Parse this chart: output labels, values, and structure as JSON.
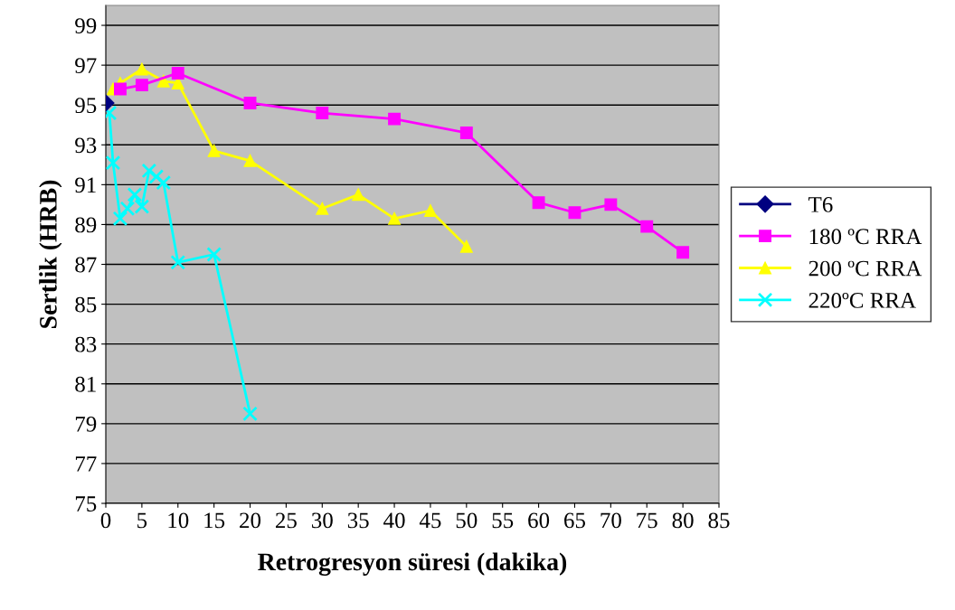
{
  "chart_data": {
    "type": "line",
    "xlabel": "Retrogresyon süresi (dakika)",
    "ylabel": "Sertlik (HRB)",
    "xlim": [
      0,
      85
    ],
    "xticks": [
      0,
      5,
      10,
      15,
      20,
      25,
      30,
      35,
      40,
      45,
      50,
      55,
      60,
      65,
      70,
      75,
      80,
      85
    ],
    "ylim": [
      75,
      100
    ],
    "yticks": [
      75,
      77,
      79,
      81,
      83,
      85,
      87,
      89,
      91,
      93,
      95,
      97,
      99
    ],
    "grid": "y",
    "legend": "right",
    "series": [
      {
        "name": "T6",
        "color": "#000080",
        "marker": "diamond",
        "x": [
          0
        ],
        "values": [
          95.1
        ]
      },
      {
        "name": "180 ºC RRA",
        "color": "#ff00ff",
        "marker": "square",
        "x": [
          2,
          5,
          10,
          20,
          30,
          40,
          50,
          60,
          65,
          70,
          75,
          80
        ],
        "values": [
          95.8,
          96.0,
          96.6,
          95.1,
          94.6,
          94.3,
          93.6,
          90.1,
          89.6,
          90.0,
          88.9,
          87.6
        ]
      },
      {
        "name": "200 ºC RRA",
        "color": "#ffff00",
        "marker": "triangle",
        "x": [
          1,
          2,
          5,
          8,
          10,
          15,
          20,
          30,
          35,
          40,
          45,
          50
        ],
        "values": [
          95.8,
          96.1,
          96.8,
          96.2,
          96.1,
          92.7,
          92.2,
          89.8,
          90.5,
          89.3,
          89.7,
          87.9
        ]
      },
      {
        "name": "220ºC RRA",
        "color": "#00ffff",
        "marker": "cross",
        "x": [
          0.5,
          1,
          2,
          3,
          4,
          5,
          6,
          7,
          8,
          10,
          15,
          20
        ],
        "values": [
          94.6,
          92.1,
          89.3,
          89.8,
          90.5,
          89.9,
          91.7,
          91.4,
          91.1,
          87.1,
          87.5,
          79.5
        ]
      }
    ]
  }
}
